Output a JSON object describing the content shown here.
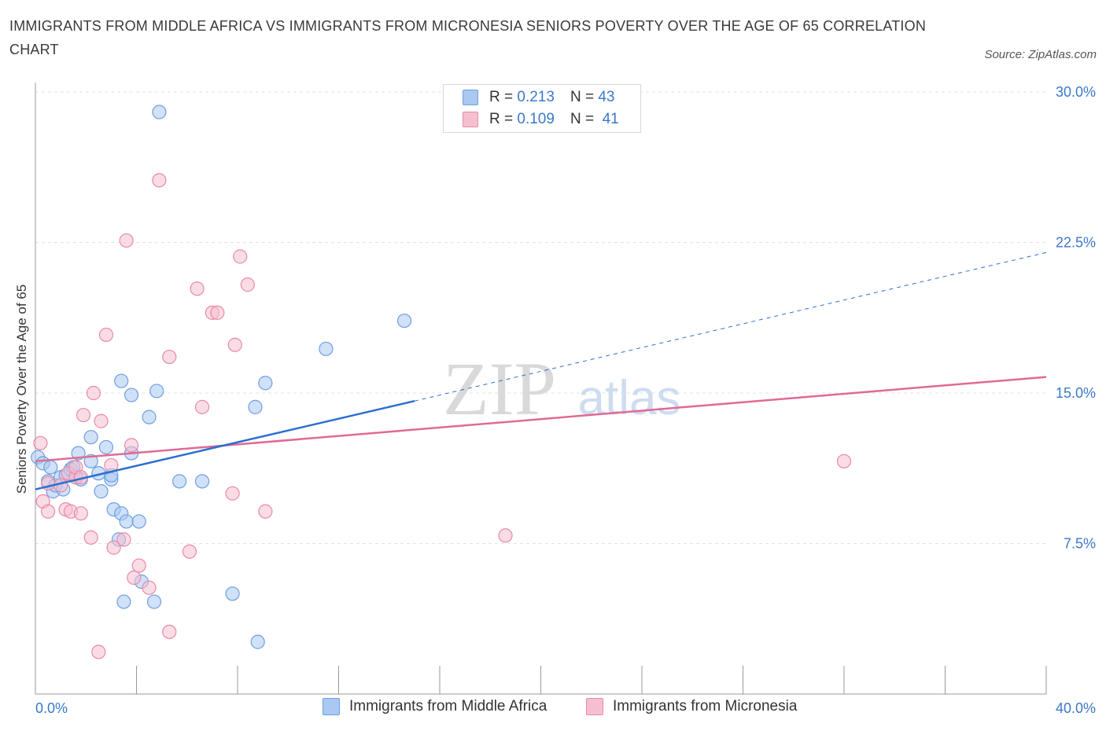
{
  "title": "IMMIGRANTS FROM MIDDLE AFRICA VS IMMIGRANTS FROM MICRONESIA SENIORS POVERTY OVER THE AGE OF 65 CORRELATION CHART",
  "source": "Source: ZipAtlas.com",
  "watermark": {
    "zip": "ZIP",
    "atlas": "atlas"
  },
  "stats": [
    {
      "r_label": "R =",
      "r_value": "0.213",
      "n_label": "N =",
      "n_value": "43"
    },
    {
      "r_label": "R =",
      "r_value": "0.109",
      "n_label": "N =",
      "n_value": "41"
    }
  ],
  "colors": {
    "blue_fill": "#aac8f2",
    "blue_stroke": "#6f9fe0",
    "blue_line": "#2b6fd0",
    "pink_fill": "#f6bfd0",
    "pink_stroke": "#e88aa8",
    "pink_line": "#e06a94",
    "tick": "#3b78c9",
    "grid": "#dde3ec"
  },
  "chart_data": {
    "type": "scatter",
    "title": "IMMIGRANTS FROM MIDDLE AFRICA VS IMMIGRANTS FROM MICRONESIA SENIORS POVERTY OVER THE AGE OF 65 CORRELATION CHART",
    "xlabel": "",
    "ylabel": "Seniors Poverty Over the Age of 65",
    "xlim": [
      0,
      40
    ],
    "ylim": [
      0,
      30
    ],
    "x_ticks": [
      {
        "value": 0,
        "label": "0.0%"
      },
      {
        "value": 40,
        "label": "40.0%"
      }
    ],
    "y_ticks": [
      {
        "value": 7.5,
        "label": "7.5%"
      },
      {
        "value": 15,
        "label": "15.0%"
      },
      {
        "value": 22.5,
        "label": "22.5%"
      },
      {
        "value": 30,
        "label": "30.0%"
      }
    ],
    "legend_position": "bottom",
    "series": [
      {
        "name": "Immigrants from Middle Africa",
        "color": "blue",
        "trend": {
          "x0": 0,
          "y0": 10.2,
          "x1": 15,
          "y1": 14.6,
          "dash_to_x": 40,
          "dash_to_y": 22
        },
        "points": [
          [
            0.1,
            11.8
          ],
          [
            0.3,
            11.5
          ],
          [
            0.5,
            10.6
          ],
          [
            0.6,
            11.3
          ],
          [
            0.7,
            10.1
          ],
          [
            0.8,
            10.4
          ],
          [
            1.1,
            10.2
          ],
          [
            1.0,
            10.8
          ],
          [
            1.2,
            10.9
          ],
          [
            1.4,
            11.2
          ],
          [
            1.5,
            11.3
          ],
          [
            1.6,
            10.8
          ],
          [
            1.7,
            12.0
          ],
          [
            1.8,
            10.7
          ],
          [
            2.2,
            11.6
          ],
          [
            2.2,
            12.8
          ],
          [
            2.5,
            11.0
          ],
          [
            2.6,
            10.1
          ],
          [
            2.8,
            12.3
          ],
          [
            3.0,
            10.7
          ],
          [
            3.0,
            10.9
          ],
          [
            3.1,
            9.2
          ],
          [
            3.3,
            7.7
          ],
          [
            3.4,
            9.0
          ],
          [
            3.4,
            15.6
          ],
          [
            3.5,
            4.6
          ],
          [
            3.6,
            8.6
          ],
          [
            3.8,
            12.0
          ],
          [
            3.8,
            14.9
          ],
          [
            4.1,
            8.6
          ],
          [
            4.2,
            5.6
          ],
          [
            4.5,
            13.8
          ],
          [
            4.7,
            4.6
          ],
          [
            4.8,
            15.1
          ],
          [
            4.9,
            29.0
          ],
          [
            5.7,
            10.6
          ],
          [
            6.6,
            10.6
          ],
          [
            7.8,
            5.0
          ],
          [
            8.7,
            14.3
          ],
          [
            8.8,
            2.6
          ],
          [
            9.1,
            15.5
          ],
          [
            11.5,
            17.2
          ],
          [
            14.6,
            18.6
          ]
        ]
      },
      {
        "name": "Immigrants from Micronesia",
        "color": "pink",
        "trend": {
          "x0": 0,
          "y0": 11.6,
          "x1": 40,
          "y1": 15.8
        },
        "points": [
          [
            0.2,
            12.5
          ],
          [
            0.3,
            9.6
          ],
          [
            0.5,
            10.5
          ],
          [
            0.5,
            9.1
          ],
          [
            1.0,
            10.4
          ],
          [
            1.2,
            9.2
          ],
          [
            1.3,
            11.0
          ],
          [
            1.4,
            9.1
          ],
          [
            1.6,
            10.8
          ],
          [
            1.6,
            11.3
          ],
          [
            1.8,
            10.8
          ],
          [
            1.8,
            9.0
          ],
          [
            1.9,
            13.9
          ],
          [
            2.2,
            7.8
          ],
          [
            2.3,
            15.0
          ],
          [
            2.5,
            2.1
          ],
          [
            2.6,
            13.6
          ],
          [
            2.8,
            17.9
          ],
          [
            3.0,
            11.4
          ],
          [
            3.1,
            7.3
          ],
          [
            3.5,
            7.7
          ],
          [
            3.6,
            22.6
          ],
          [
            3.8,
            12.4
          ],
          [
            3.9,
            5.8
          ],
          [
            4.1,
            6.4
          ],
          [
            4.5,
            5.3
          ],
          [
            4.9,
            25.6
          ],
          [
            5.3,
            16.8
          ],
          [
            5.3,
            3.1
          ],
          [
            6.1,
            7.1
          ],
          [
            6.4,
            20.2
          ],
          [
            6.6,
            14.3
          ],
          [
            7.0,
            19.0
          ],
          [
            7.2,
            19.0
          ],
          [
            7.8,
            10.0
          ],
          [
            7.9,
            17.4
          ],
          [
            8.1,
            21.8
          ],
          [
            8.4,
            20.4
          ],
          [
            9.1,
            9.1
          ],
          [
            18.6,
            7.9
          ],
          [
            32.0,
            11.6
          ]
        ]
      }
    ]
  }
}
